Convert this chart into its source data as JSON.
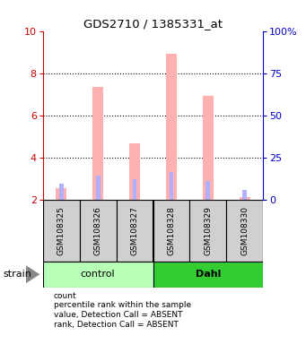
{
  "title": "GDS2710 / 1385331_at",
  "samples": [
    "GSM108325",
    "GSM108326",
    "GSM108327",
    "GSM108328",
    "GSM108329",
    "GSM108330"
  ],
  "groups": [
    "control",
    "control",
    "control",
    "Dahl",
    "Dahl",
    "Dahl"
  ],
  "group_colors": {
    "control": "#b8ffb8",
    "Dahl": "#33cc33"
  },
  "ylim": [
    2,
    10
  ],
  "yticks_left": [
    2,
    4,
    6,
    8,
    10
  ],
  "ytick_labels_right": [
    "0",
    "25",
    "50",
    "75",
    "100%"
  ],
  "left_axis_color": "#cc0000",
  "right_axis_color": "#0000cc",
  "value_bars": [
    2.55,
    7.35,
    4.65,
    8.9,
    6.9,
    2.1
  ],
  "rank_bars": [
    2.75,
    3.15,
    2.95,
    3.3,
    2.9,
    2.45
  ],
  "value_bar_color": "#ffb0b0",
  "rank_bar_color": "#b0b0ff",
  "bar_base": 2.0,
  "legend_items": [
    {
      "color": "#cc0000",
      "label": "count"
    },
    {
      "color": "#0000cc",
      "label": "percentile rank within the sample"
    },
    {
      "color": "#ffb0b0",
      "label": "value, Detection Call = ABSENT"
    },
    {
      "color": "#b0b0ff",
      "label": "rank, Detection Call = ABSENT"
    }
  ],
  "strain_label": "strain",
  "background_color": "#ffffff",
  "sample_area_color": "#d0d0d0"
}
